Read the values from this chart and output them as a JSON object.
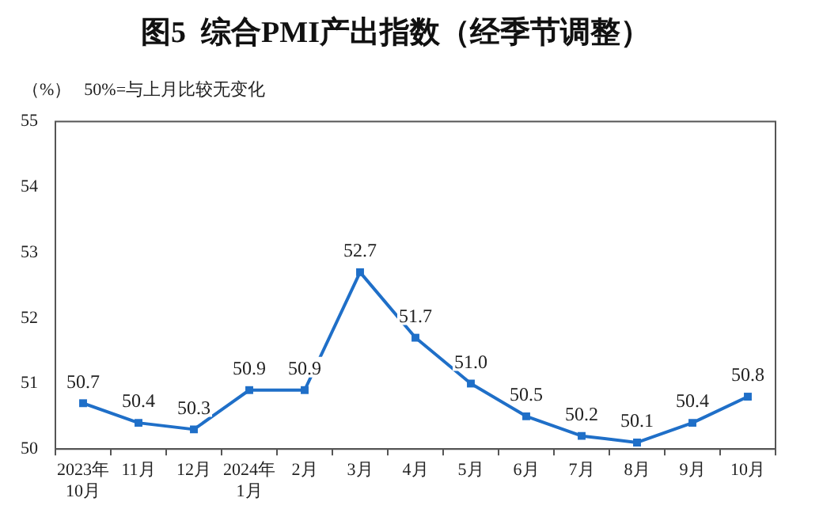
{
  "chart_data": {
    "type": "line",
    "title": "图5  综合PMI产出指数（经季节调整）",
    "ylabel": "（%）",
    "annotations": [
      "50%=与上月比较无变化"
    ],
    "categories": [
      "2023年\n10月",
      "11月",
      "12月",
      "2024年\n1月",
      "2月",
      "3月",
      "4月",
      "5月",
      "6月",
      "7月",
      "8月",
      "9月",
      "10月"
    ],
    "series": [
      {
        "color": "#1f6fc8",
        "values": [
          50.7,
          50.4,
          50.3,
          50.9,
          50.9,
          52.7,
          51.7,
          51.0,
          50.5,
          50.2,
          50.1,
          50.4,
          50.8
        ]
      }
    ],
    "value_labels": [
      "50.7",
      "50.4",
      "50.3",
      "50.9",
      "50.9",
      "52.7",
      "51.7",
      "51.0",
      "50.5",
      "50.2",
      "50.1",
      "50.4",
      "50.8"
    ],
    "ylim": [
      50,
      55
    ],
    "yticks": [
      50,
      51,
      52,
      53,
      54,
      55
    ],
    "grid": false,
    "legend": false,
    "marker": "square",
    "line_style": "solid"
  }
}
